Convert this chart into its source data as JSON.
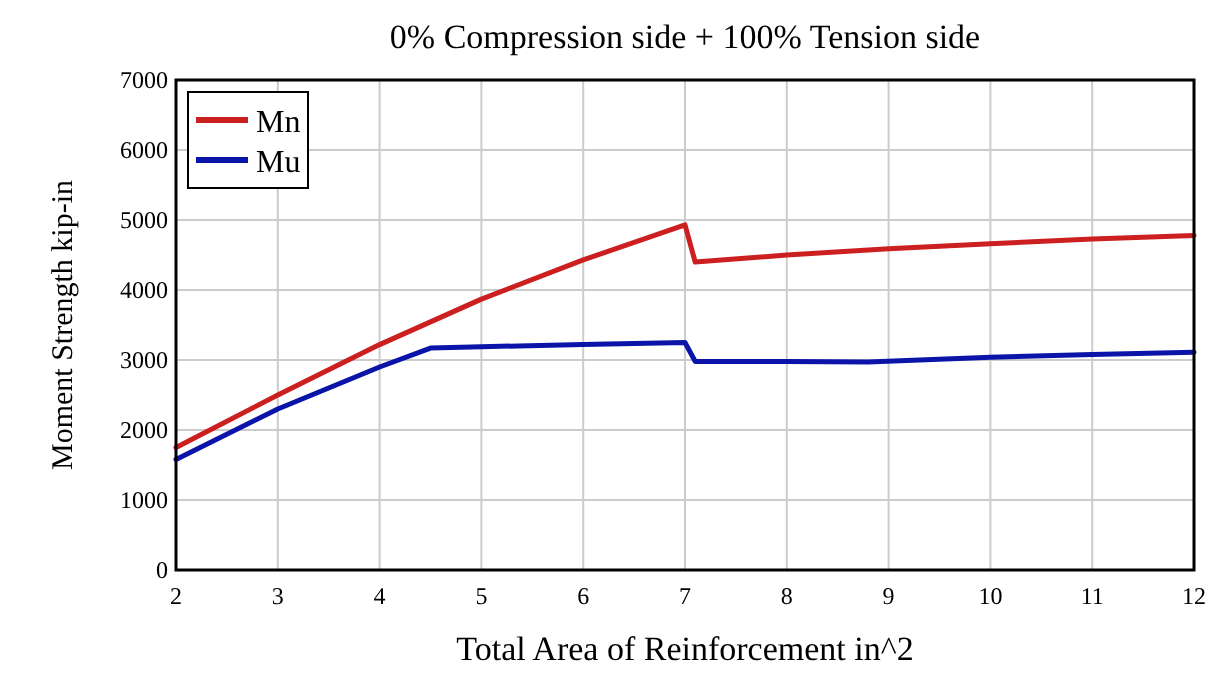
{
  "chart_data": {
    "type": "line",
    "title": "0% Compression side + 100% Tension side",
    "xlabel": "Total Area of Reinforcement    in^2",
    "ylabel": "Moment Strength    kip-in",
    "series": [
      {
        "name": "Mn",
        "color": "#cc1f1f",
        "x": [
          2,
          3,
          4,
          5,
          6,
          7,
          7.1,
          8,
          9,
          10,
          11,
          12
        ],
        "values": [
          1750,
          2500,
          3220,
          3870,
          4430,
          4930,
          4400,
          4500,
          4590,
          4660,
          4730,
          4780
        ]
      },
      {
        "name": "Mu",
        "color": "#0a14a8",
        "x": [
          2,
          3,
          4,
          4.5,
          5,
          6,
          7,
          7.1,
          8,
          8.8,
          10,
          11,
          12
        ],
        "values": [
          1580,
          2300,
          2900,
          3170,
          3190,
          3220,
          3250,
          2980,
          2980,
          2970,
          3040,
          3080,
          3110
        ]
      }
    ],
    "xlim": [
      2,
      12
    ],
    "xticks": [
      2,
      3,
      4,
      5,
      6,
      7,
      8,
      9,
      10,
      11,
      12
    ],
    "ylim": [
      0,
      7000
    ],
    "yticks": [
      0,
      1000,
      2000,
      3000,
      4000,
      5000,
      6000,
      7000
    ],
    "grid": true,
    "legend": "top left"
  }
}
